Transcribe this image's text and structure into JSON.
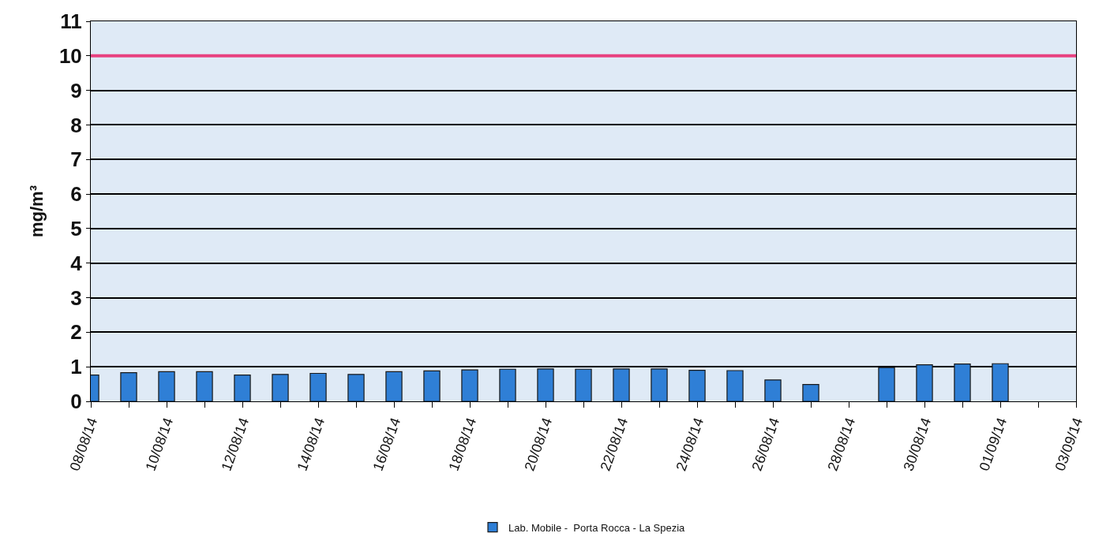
{
  "chart_data": {
    "type": "bar",
    "ylabel": "mg/m³",
    "categories": [
      "08/08/14",
      null,
      "10/08/14",
      null,
      "12/08/14",
      null,
      "14/08/14",
      null,
      "16/08/14",
      null,
      "18/08/14",
      null,
      "20/08/14",
      null,
      "22/08/14",
      null,
      "24/08/14",
      null,
      "26/08/14",
      null,
      "28/08/14",
      null,
      "30/08/14",
      null,
      "01/09/14",
      null,
      "03/09/14"
    ],
    "series": [
      {
        "name": "Lab. Mobile -  Porta Rocca - La Spezia",
        "color": "#2f7fd6",
        "values": [
          0.76,
          0.83,
          0.86,
          0.86,
          0.76,
          0.78,
          0.81,
          0.78,
          0.86,
          0.88,
          0.91,
          0.93,
          0.94,
          0.93,
          0.94,
          0.94,
          0.9,
          0.89,
          0.62,
          0.49,
          null,
          0.98,
          1.06,
          1.08,
          1.09,
          null,
          null
        ]
      }
    ],
    "ylim": [
      0,
      11
    ],
    "yticks": [
      0,
      1,
      2,
      3,
      4,
      5,
      6,
      7,
      8,
      9,
      10,
      11
    ],
    "ref_lines": [
      {
        "axis": "y",
        "value": 10,
        "color": "#e8417f"
      }
    ],
    "grid": "y",
    "legend": "bottom"
  }
}
